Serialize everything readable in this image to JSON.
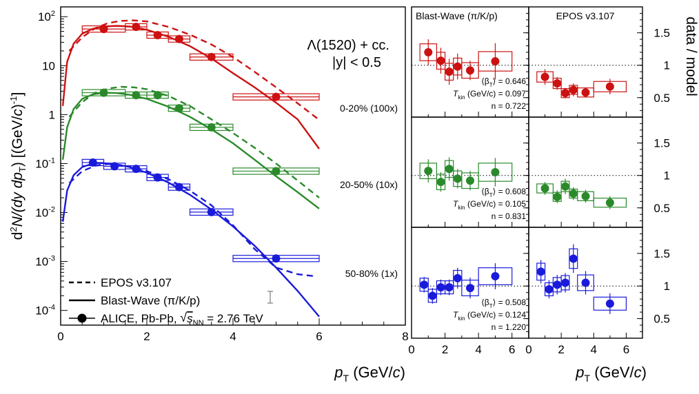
{
  "chart_data": {
    "type": "scatter",
    "spectra": {
      "ylabel_parts": [
        "d",
        "2",
        "N/(dy dp",
        "T",
        ") [(GeV/",
        "c",
        ")",
        "-1",
        "]"
      ],
      "xlabel_parts": [
        "p",
        "T",
        " (GeV/",
        "c",
        ")"
      ],
      "xlim": [
        0,
        8
      ],
      "ylim_log10": [
        -4.3,
        2.2
      ],
      "x_ticks": [
        0,
        2,
        4,
        6,
        8
      ],
      "y_ticks": [
        {
          "value": 100,
          "base": "10",
          "exp": "2"
        },
        {
          "value": 10,
          "base": "10",
          "exp": ""
        },
        {
          "value": 1,
          "base": "1",
          "exp": ""
        },
        {
          "value": 0.1,
          "base": "10",
          "exp": "-1"
        },
        {
          "value": 0.01,
          "base": "10",
          "exp": "-2"
        },
        {
          "value": 0.001,
          "base": "10",
          "exp": "-3"
        },
        {
          "value": 0.0001,
          "base": "10",
          "exp": "-4"
        }
      ],
      "title_line1": "Λ(1520) + cc.",
      "title_line2": "|y| < 0.5",
      "series": [
        {
          "name": "0-20% (100x)",
          "color": "#cc1111",
          "pt": [
            1.0,
            1.75,
            2.25,
            2.75,
            3.5,
            5.0
          ],
          "bin_low": [
            0.5,
            1.5,
            2.0,
            2.5,
            3.0,
            4.0
          ],
          "bin_high": [
            1.5,
            2.0,
            2.5,
            3.0,
            4.0,
            6.0
          ],
          "y": [
            56,
            62,
            42,
            35,
            15,
            2.3
          ],
          "blast_wave": [
            [
              0.05,
              1.5
            ],
            [
              0.15,
              12
            ],
            [
              0.3,
              28
            ],
            [
              0.5,
              45
            ],
            [
              0.75,
              57
            ],
            [
              1.0,
              63
            ],
            [
              1.3,
              65
            ],
            [
              1.6,
              63
            ],
            [
              2.0,
              54
            ],
            [
              2.5,
              39
            ],
            [
              3.0,
              25
            ],
            [
              3.5,
              14
            ],
            [
              4.0,
              7
            ],
            [
              4.5,
              3.6
            ],
            [
              5.0,
              1.75
            ],
            [
              5.5,
              0.8
            ],
            [
              6.0,
              0.2
            ]
          ],
          "epos": [
            [
              0.2,
              20
            ],
            [
              0.5,
              38
            ],
            [
              0.8,
              58
            ],
            [
              1.1,
              74
            ],
            [
              1.4,
              82
            ],
            [
              1.7,
              84
            ],
            [
              2.0,
              80
            ],
            [
              2.5,
              62
            ],
            [
              3.0,
              43
            ],
            [
              3.5,
              27
            ],
            [
              4.0,
              15
            ],
            [
              4.5,
              7.5
            ],
            [
              5.0,
              3.6
            ],
            [
              5.5,
              1.7
            ],
            [
              6.0,
              0.78
            ]
          ]
        },
        {
          "name": "20-50% (10x)",
          "color": "#2a8a2a",
          "pt": [
            1.0,
            1.75,
            2.25,
            2.75,
            3.5,
            5.0
          ],
          "bin_low": [
            0.5,
            1.5,
            2.0,
            2.5,
            3.0,
            4.0
          ],
          "bin_high": [
            1.5,
            2.0,
            2.5,
            3.0,
            4.0,
            6.0
          ],
          "y": [
            2.8,
            2.5,
            2.5,
            1.35,
            0.55,
            0.07
          ],
          "blast_wave": [
            [
              0.05,
              0.12
            ],
            [
              0.15,
              0.55
            ],
            [
              0.3,
              1.3
            ],
            [
              0.5,
              2.1
            ],
            [
              0.75,
              2.6
            ],
            [
              1.0,
              2.8
            ],
            [
              1.3,
              2.75
            ],
            [
              1.6,
              2.55
            ],
            [
              2.0,
              2.1
            ],
            [
              2.5,
              1.45
            ],
            [
              3.0,
              0.9
            ],
            [
              3.5,
              0.5
            ],
            [
              4.0,
              0.26
            ],
            [
              4.5,
              0.12
            ],
            [
              5.0,
              0.055
            ],
            [
              5.5,
              0.026
            ],
            [
              6.0,
              0.012
            ]
          ],
          "epos": [
            [
              0.2,
              0.9
            ],
            [
              0.5,
              1.8
            ],
            [
              0.8,
              2.8
            ],
            [
              1.1,
              3.4
            ],
            [
              1.4,
              3.7
            ],
            [
              1.7,
              3.6
            ],
            [
              2.0,
              3.3
            ],
            [
              2.5,
              2.4
            ],
            [
              3.0,
              1.5
            ],
            [
              3.5,
              0.8
            ],
            [
              4.0,
              0.42
            ],
            [
              4.5,
              0.21
            ],
            [
              5.0,
              0.1
            ],
            [
              5.5,
              0.045
            ],
            [
              6.0,
              0.02
            ]
          ]
        },
        {
          "name": "50-80% (1x)",
          "color": "#1a1adb",
          "pt": [
            0.75,
            1.25,
            1.75,
            2.25,
            2.75,
            3.5,
            5.0
          ],
          "bin_low": [
            0.5,
            1.0,
            1.5,
            2.0,
            2.5,
            3.0,
            4.0
          ],
          "bin_high": [
            1.0,
            1.5,
            2.0,
            2.5,
            3.0,
            4.0,
            6.0
          ],
          "y": [
            0.105,
            0.088,
            0.078,
            0.052,
            0.033,
            0.0102,
            0.00115
          ],
          "blast_wave": [
            [
              0.05,
              0.0065
            ],
            [
              0.15,
              0.028
            ],
            [
              0.3,
              0.058
            ],
            [
              0.5,
              0.085
            ],
            [
              0.75,
              0.1
            ],
            [
              1.0,
              0.102
            ],
            [
              1.3,
              0.096
            ],
            [
              1.6,
              0.085
            ],
            [
              2.0,
              0.065
            ],
            [
              2.5,
              0.041
            ],
            [
              3.0,
              0.023
            ],
            [
              3.5,
              0.0115
            ],
            [
              4.0,
              0.0052
            ],
            [
              4.5,
              0.0021
            ],
            [
              5.0,
              0.00075
            ],
            [
              5.5,
              0.00025
            ],
            [
              6.0,
              7.5e-05
            ]
          ],
          "epos": [
            [
              0.2,
              0.04
            ],
            [
              0.5,
              0.07
            ],
            [
              0.8,
              0.09
            ],
            [
              1.1,
              0.098
            ],
            [
              1.4,
              0.093
            ],
            [
              1.7,
              0.083
            ],
            [
              2.0,
              0.07
            ],
            [
              2.5,
              0.048
            ],
            [
              3.0,
              0.028
            ],
            [
              3.5,
              0.014
            ],
            [
              4.0,
              0.0055
            ],
            [
              4.5,
              0.0018
            ],
            [
              5.0,
              0.00075
            ],
            [
              5.5,
              0.00055
            ],
            [
              5.9,
              0.0005
            ]
          ]
        }
      ],
      "legend": [
        {
          "style": "dashed",
          "parts": [
            "EPOS v3.107"
          ]
        },
        {
          "style": "solid",
          "parts": [
            "Blast-Wave (π/K/p)"
          ]
        },
        {
          "style": "marker",
          "parts": [
            "ALICE, Pb-Pb, ",
            "√",
            "s",
            "NN",
            " = 2.76 TeV"
          ]
        }
      ]
    },
    "ratios": {
      "ylabel": "data / model",
      "xlabel_parts": [
        "p",
        "T",
        " (GeV/",
        "c",
        ")"
      ],
      "ylim": [
        0.2,
        1.9
      ],
      "xlim": [
        0,
        7
      ],
      "y_ticks": [
        {
          "value": 0.5,
          "label": "0.5"
        },
        {
          "value": 1,
          "label": "1"
        },
        {
          "value": 1.5,
          "label": "1.5"
        }
      ],
      "x_ticks": [
        0,
        2,
        4,
        6
      ],
      "columns": [
        {
          "title": "Blast-Wave (π/K/p)",
          "rows": [
            {
              "color": "#cc1111",
              "pt": [
                1.0,
                1.75,
                2.25,
                2.75,
                3.5,
                5.0
              ],
              "bin_low": [
                0.5,
                1.5,
                2.0,
                2.5,
                3.0,
                4.0
              ],
              "bin_high": [
                1.5,
                2.0,
                2.5,
                3.0,
                4.0,
                6.0
              ],
              "y": [
                1.2,
                1.07,
                0.9,
                0.98,
                0.92,
                1.06
              ],
              "stat": [
                0.2,
                0.2,
                0.2,
                0.2,
                0.15,
                0.28
              ],
              "syst": [
                0.13,
                0.13,
                0.13,
                0.13,
                0.12,
                0.15
              ],
              "params": {
                "beta_label": "⟨β",
                "beta_sub": "T",
                "beta_suffix": "⟩ = 0.646",
                "t_label": "T",
                "t_sub": "kin",
                "t_suffix": " (GeV/c) = 0.097",
                "n_label": "n = 0.722"
              }
            },
            {
              "color": "#2a8a2a",
              "pt": [
                1.0,
                1.75,
                2.25,
                2.75,
                3.5,
                5.0
              ],
              "bin_low": [
                0.5,
                1.5,
                2.0,
                2.5,
                3.0,
                4.0
              ],
              "bin_high": [
                1.5,
                2.0,
                2.5,
                3.0,
                4.0,
                6.0
              ],
              "y": [
                1.07,
                0.9,
                1.1,
                0.95,
                0.92,
                1.05
              ],
              "stat": [
                0.18,
                0.15,
                0.18,
                0.15,
                0.15,
                0.22
              ],
              "syst": [
                0.12,
                0.12,
                0.13,
                0.12,
                0.12,
                0.14
              ],
              "params": {
                "beta_label": "⟨β",
                "beta_sub": "T",
                "beta_suffix": "⟩ = 0.608",
                "t_label": "T",
                "t_sub": "kin",
                "t_suffix": " (GeV/c) = 0.105",
                "n_label": "n = 0.831"
              }
            },
            {
              "color": "#1a1adb",
              "pt": [
                0.75,
                1.25,
                1.75,
                2.25,
                2.75,
                3.5,
                5.0
              ],
              "bin_low": [
                0.5,
                1.0,
                1.5,
                2.0,
                2.5,
                3.0,
                4.0
              ],
              "bin_high": [
                1.0,
                1.5,
                2.0,
                2.5,
                3.0,
                4.0,
                6.0
              ],
              "y": [
                1.02,
                0.85,
                0.98,
                0.98,
                1.12,
                0.97,
                1.15
              ],
              "stat": [
                0.12,
                0.12,
                0.12,
                0.12,
                0.16,
                0.16,
                0.2
              ],
              "syst": [
                0.1,
                0.1,
                0.1,
                0.1,
                0.12,
                0.12,
                0.13
              ],
              "params": {
                "beta_label": "⟨β",
                "beta_sub": "T",
                "beta_suffix": "⟩ = 0.508",
                "t_label": "T",
                "t_sub": "kin",
                "t_suffix": " (GeV/c) = 0.124",
                "n_label": "n = 1.220"
              }
            }
          ]
        },
        {
          "title": "EPOS v3.107",
          "rows": [
            {
              "color": "#cc1111",
              "pt": [
                1.0,
                1.75,
                2.25,
                2.75,
                3.5,
                5.0
              ],
              "bin_low": [
                0.5,
                1.5,
                2.0,
                2.5,
                3.0,
                4.0
              ],
              "bin_high": [
                1.5,
                2.0,
                2.5,
                3.0,
                4.0,
                6.0
              ],
              "y": [
                0.82,
                0.72,
                0.57,
                0.62,
                0.58,
                0.67
              ],
              "stat": [
                0.12,
                0.1,
                0.08,
                0.1,
                0.08,
                0.12
              ],
              "syst": [
                0.08,
                0.08,
                0.07,
                0.07,
                0.07,
                0.08
              ],
              "params": null
            },
            {
              "color": "#2a8a2a",
              "pt": [
                1.0,
                1.75,
                2.25,
                2.75,
                3.5,
                5.0
              ],
              "bin_low": [
                0.5,
                1.5,
                2.0,
                2.5,
                3.0,
                4.0
              ],
              "bin_high": [
                1.5,
                2.0,
                2.5,
                3.0,
                4.0,
                6.0
              ],
              "y": [
                0.8,
                0.67,
                0.83,
                0.72,
                0.68,
                0.58
              ],
              "stat": [
                0.1,
                0.1,
                0.12,
                0.1,
                0.1,
                0.1
              ],
              "syst": [
                0.07,
                0.07,
                0.08,
                0.07,
                0.07,
                0.07
              ],
              "params": null
            },
            {
              "color": "#1a1adb",
              "pt": [
                0.75,
                1.25,
                1.75,
                2.25,
                2.75,
                3.5,
                5.0
              ],
              "bin_low": [
                0.5,
                1.0,
                1.5,
                2.0,
                2.5,
                3.0,
                4.0
              ],
              "bin_high": [
                1.0,
                1.5,
                2.0,
                2.5,
                3.0,
                4.0,
                6.0
              ],
              "y": [
                1.22,
                0.95,
                1.02,
                1.05,
                1.42,
                1.05,
                0.73
              ],
              "stat": [
                0.18,
                0.14,
                0.15,
                0.15,
                0.22,
                0.18,
                0.16
              ],
              "syst": [
                0.13,
                0.1,
                0.11,
                0.11,
                0.15,
                0.12,
                0.1
              ],
              "params": null
            }
          ]
        }
      ]
    }
  }
}
